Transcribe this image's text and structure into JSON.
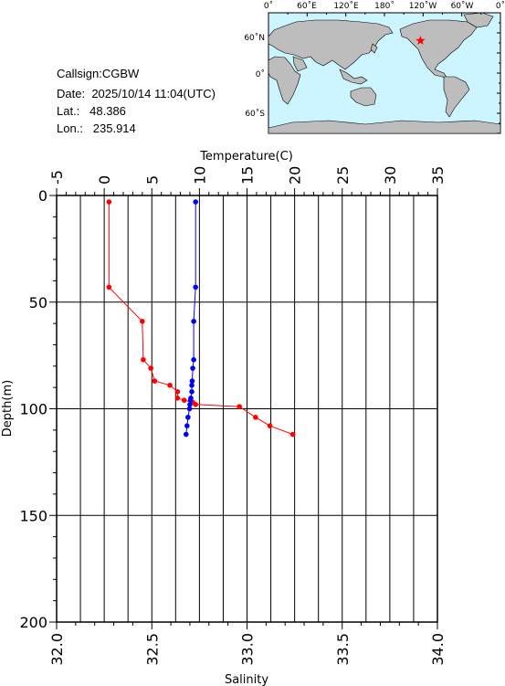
{
  "station": {
    "callsign_label": "Callsign:",
    "callsign": "CGBW",
    "date_label": "Date:",
    "date": "2025/10/14 11:04(UTC)",
    "lat_label": "Lat.:",
    "lat": "48.386",
    "lon_label": "Lon.:",
    "lon": "235.914"
  },
  "map": {
    "top_labels": [
      "0˚",
      "60˚E",
      "120˚E",
      "180˚",
      "120˚W",
      "60˚W",
      "0˚"
    ],
    "side_labels": [
      "60˚N",
      "0˚",
      "60˚S"
    ],
    "ocean_color": "#ccf5ff",
    "land_color": "#bdbdbd",
    "marker_color": "#ff0000"
  },
  "chart_data": {
    "type": "line",
    "ylabel": "Depth(m)",
    "ylim": [
      200,
      0
    ],
    "yticks": [
      "0",
      "50",
      "100",
      "150",
      "200"
    ],
    "top_axis": {
      "label": "Temperature(C)",
      "range": [
        -5,
        35
      ],
      "ticks": [
        "-5",
        "0",
        "5",
        "10",
        "15",
        "20",
        "25",
        "30",
        "35"
      ]
    },
    "bottom_axis": {
      "label": "Salinity",
      "range": [
        32.0,
        34.0
      ],
      "ticks": [
        "32.0",
        "32.5",
        "33.0",
        "33.5",
        "34.0"
      ]
    },
    "grid": true,
    "series": [
      {
        "axis": "top",
        "color": "#ff0000",
        "points": [
          {
            "x": 0.5,
            "depth": 3
          },
          {
            "x": 0.5,
            "depth": 43
          },
          {
            "x": 4.0,
            "depth": 59
          },
          {
            "x": 4.1,
            "depth": 77
          },
          {
            "x": 4.9,
            "depth": 81
          },
          {
            "x": 5.3,
            "depth": 87
          },
          {
            "x": 6.9,
            "depth": 89
          },
          {
            "x": 7.7,
            "depth": 92
          },
          {
            "x": 7.7,
            "depth": 95
          },
          {
            "x": 8.4,
            "depth": 96
          },
          {
            "x": 9.3,
            "depth": 97
          },
          {
            "x": 9.6,
            "depth": 98
          },
          {
            "x": 14.2,
            "depth": 99
          },
          {
            "x": 15.9,
            "depth": 104
          },
          {
            "x": 17.4,
            "depth": 108
          },
          {
            "x": 19.8,
            "depth": 112
          }
        ]
      },
      {
        "axis": "bottom",
        "color": "#0000ff",
        "points": [
          {
            "x": 32.73,
            "depth": 3
          },
          {
            "x": 32.73,
            "depth": 43
          },
          {
            "x": 32.72,
            "depth": 59
          },
          {
            "x": 32.72,
            "depth": 77
          },
          {
            "x": 32.715,
            "depth": 81
          },
          {
            "x": 32.712,
            "depth": 87
          },
          {
            "x": 32.71,
            "depth": 89
          },
          {
            "x": 32.71,
            "depth": 92
          },
          {
            "x": 32.705,
            "depth": 95
          },
          {
            "x": 32.703,
            "depth": 96
          },
          {
            "x": 32.7,
            "depth": 98
          },
          {
            "x": 32.698,
            "depth": 100
          },
          {
            "x": 32.69,
            "depth": 104
          },
          {
            "x": 32.685,
            "depth": 108
          },
          {
            "x": 32.68,
            "depth": 112
          }
        ]
      }
    ]
  }
}
